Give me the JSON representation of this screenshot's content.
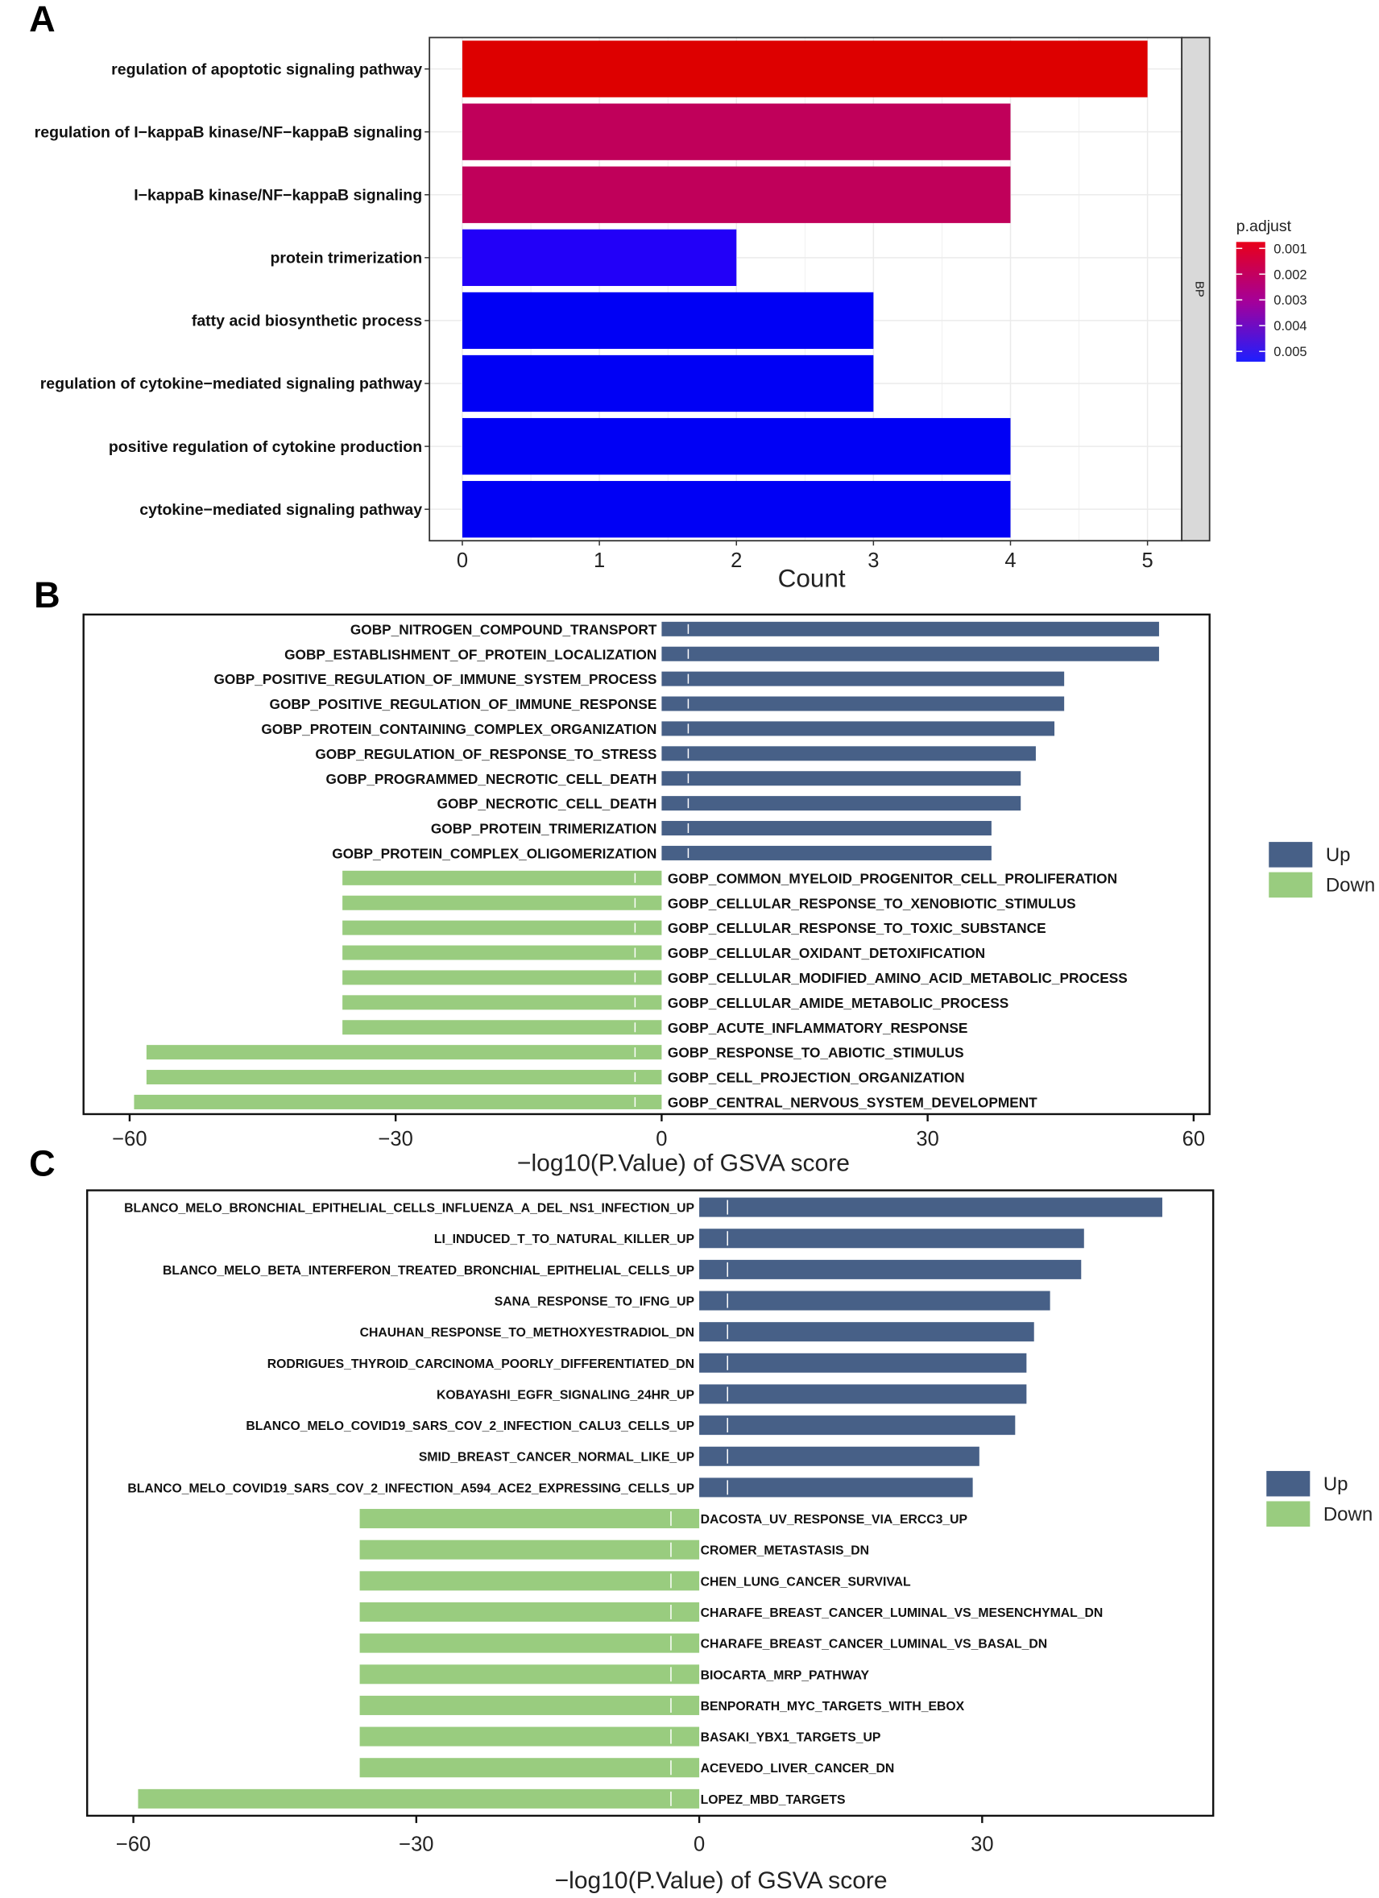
{
  "chart_data": [
    {
      "panel": "A",
      "type": "bar",
      "orientation": "horizontal",
      "categories": [
        "regulation of apoptotic signaling pathway",
        "regulation of I−kappaB kinase/NF−kappaB signaling",
        "I−kappaB kinase/NF−kappaB signaling",
        "protein trimerization",
        "fatty acid biosynthetic process",
        "regulation of cytokine−mediated signaling pathway",
        "positive regulation of cytokine production",
        "cytokine−mediated signaling pathway"
      ],
      "values": [
        5,
        4,
        4,
        2,
        3,
        3,
        4,
        4
      ],
      "p_adjust": [
        0.0008,
        0.0025,
        0.0025,
        0.0052,
        0.0054,
        0.0054,
        0.0054,
        0.0054
      ],
      "colors": [
        "#DD0000",
        "#C0005A",
        "#C0005A",
        "#2200F8",
        "#0000F5",
        "#0000F5",
        "#0000F5",
        "#0000F5"
      ],
      "xlabel": "Count",
      "xticks": [
        "0",
        "1",
        "2",
        "3",
        "4",
        "5"
      ],
      "xlim": [
        -0.24,
        5.25
      ],
      "facet_strip": "BP",
      "legend": {
        "title": "p.adjust",
        "labels": [
          "0.001",
          "0.002",
          "0.003",
          "0.004",
          "0.005"
        ],
        "range": [
          0.00075,
          0.0054
        ],
        "low_color": "#E8001A",
        "mid_color": "#A4009A",
        "high_color": "#1E1EFF",
        "placement": "right"
      }
    },
    {
      "panel": "B",
      "type": "bar",
      "orientation": "horizontal",
      "categories": [
        "GOBP_NITROGEN_COMPOUND_TRANSPORT",
        "GOBP_ESTABLISHMENT_OF_PROTEIN_LOCALIZATION",
        "GOBP_POSITIVE_REGULATION_OF_IMMUNE_SYSTEM_PROCESS",
        "GOBP_POSITIVE_REGULATION_OF_IMMUNE_RESPONSE",
        "GOBP_PROTEIN_CONTAINING_COMPLEX_ORGANIZATION",
        "GOBP_REGULATION_OF_RESPONSE_TO_STRESS",
        "GOBP_PROGRAMMED_NECROTIC_CELL_DEATH",
        "GOBP_NECROTIC_CELL_DEATH",
        "GOBP_PROTEIN_TRIMERIZATION",
        "GOBP_PROTEIN_COMPLEX_OLIGOMERIZATION",
        "GOBP_COMMON_MYELOID_PROGENITOR_CELL_PROLIFERATION",
        "GOBP_CELLULAR_RESPONSE_TO_XENOBIOTIC_STIMULUS",
        "GOBP_CELLULAR_RESPONSE_TO_TOXIC_SUBSTANCE",
        "GOBP_CELLULAR_OXIDANT_DETOXIFICATION",
        "GOBP_CELLULAR_MODIFIED_AMINO_ACID_METABOLIC_PROCESS",
        "GOBP_CELLULAR_AMIDE_METABOLIC_PROCESS",
        "GOBP_ACUTE_INFLAMMATORY_RESPONSE",
        "GOBP_RESPONSE_TO_ABIOTIC_STIMULUS",
        "GOBP_CELL_PROJECTION_ORGANIZATION",
        "GOBP_CENTRAL_NERVOUS_SYSTEM_DEVELOPMENT"
      ],
      "values": [
        56.1,
        56.1,
        45.4,
        45.4,
        44.3,
        42.2,
        40.5,
        40.5,
        37.2,
        37.2,
        -36.0,
        -36.0,
        -36.0,
        -36.0,
        -36.0,
        -36.0,
        -36.0,
        -58.1,
        -58.1,
        -59.5
      ],
      "xlabel": "−log10(P.Value) of GSVA score",
      "xticks": [
        "−60",
        "−30",
        "0",
        "30",
        "60"
      ],
      "xtick_values": [
        -60,
        -30,
        0,
        30,
        60
      ],
      "xlim": [
        -65.2,
        61.8
      ],
      "legend": {
        "entries": [
          "Up",
          "Down"
        ],
        "colors": [
          "#476087",
          "#99CC7F"
        ],
        "placement": "right"
      }
    },
    {
      "panel": "C",
      "type": "bar",
      "orientation": "horizontal",
      "categories": [
        "BLANCO_MELO_BRONCHIAL_EPITHELIAL_CELLS_INFLUENZA_A_DEL_NS1_INFECTION_UP",
        "LI_INDUCED_T_TO_NATURAL_KILLER_UP",
        "BLANCO_MELO_BETA_INTERFERON_TREATED_BRONCHIAL_EPITHELIAL_CELLS_UP",
        "SANA_RESPONSE_TO_IFNG_UP",
        "CHAUHAN_RESPONSE_TO_METHOXYESTRADIOL_DN",
        "RODRIGUES_THYROID_CARCINOMA_POORLY_DIFFERENTIATED_DN",
        "KOBAYASHI_EGFR_SIGNALING_24HR_UP",
        "BLANCO_MELO_COVID19_SARS_COV_2_INFECTION_CALU3_CELLS_UP",
        "SMID_BREAST_CANCER_NORMAL_LIKE_UP",
        "BLANCO_MELO_COVID19_SARS_COV_2_INFECTION_A594_ACE2_EXPRESSING_CELLS_UP",
        "DACOSTA_UV_RESPONSE_VIA_ERCC3_UP",
        "CROMER_METASTASIS_DN",
        "CHEN_LUNG_CANCER_SURVIVAL",
        "CHARAFE_BREAST_CANCER_LUMINAL_VS_MESENCHYMAL_DN",
        "CHARAFE_BREAST_CANCER_LUMINAL_VS_BASAL_DN",
        "BIOCARTA_MRP_PATHWAY",
        "BENPORATH_MYC_TARGETS_WITH_EBOX",
        "BASAKI_YBX1_TARGETS_UP",
        "ACEVEDO_LIVER_CANCER_DN",
        "LOPEZ_MBD_TARGETS"
      ],
      "values": [
        49.1,
        40.8,
        40.5,
        37.2,
        35.5,
        34.7,
        34.7,
        33.5,
        29.7,
        29.0,
        -36.0,
        -36.0,
        -36.0,
        -36.0,
        -36.0,
        -36.0,
        -36.0,
        -36.0,
        -36.0,
        -59.5
      ],
      "xlabel": "−log10(P.Value) of GSVA score",
      "xticks": [
        "−60",
        "−30",
        "0",
        "30"
      ],
      "xtick_values": [
        -60,
        -30,
        0,
        30
      ],
      "xlim": [
        -64.9,
        54.5
      ],
      "legend": {
        "entries": [
          "Up",
          "Down"
        ],
        "colors": [
          "#476087",
          "#99CC7F"
        ],
        "placement": "right"
      }
    }
  ],
  "panel_letters": [
    "A",
    "B",
    "C"
  ]
}
